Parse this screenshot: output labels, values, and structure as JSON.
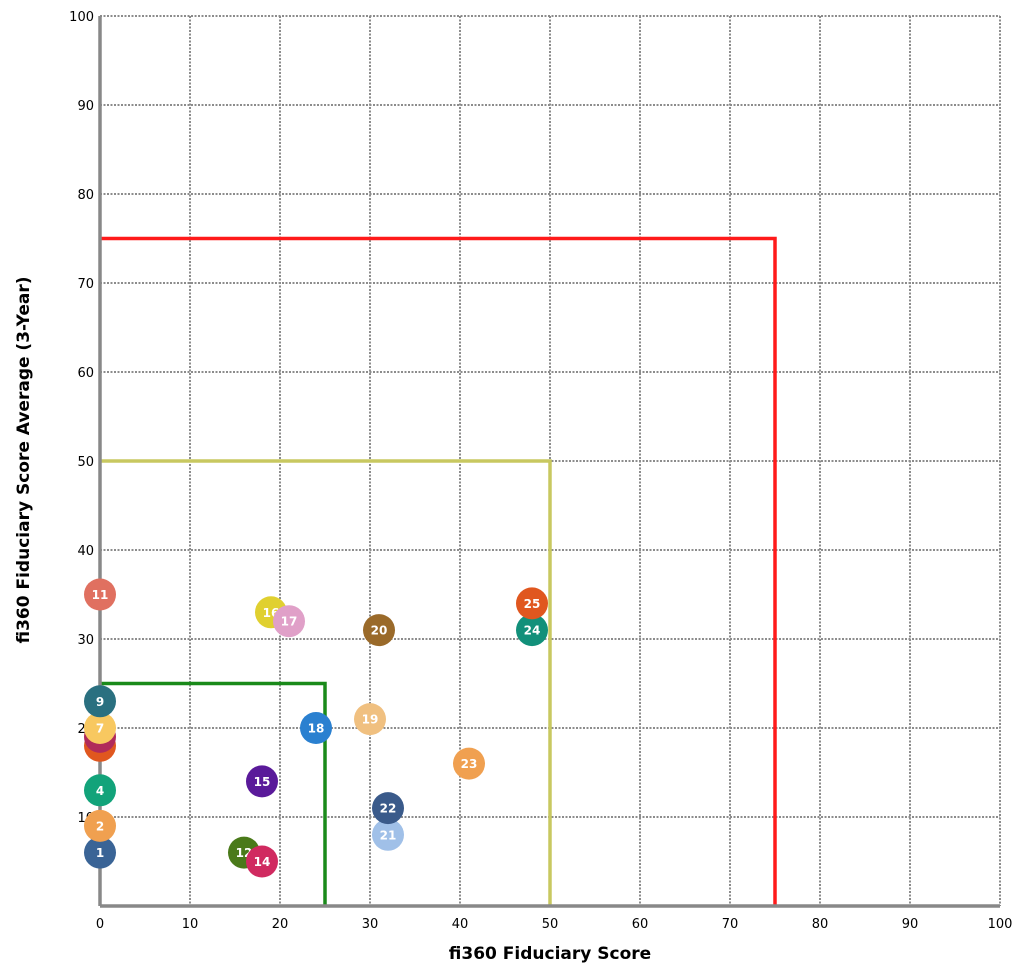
{
  "chart_data": {
    "type": "scatter",
    "xlabel": "fi360 Fiduciary Score",
    "ylabel": "fi360 Fiduciary Score Average (3-Year)",
    "xlim": [
      0,
      100
    ],
    "ylim": [
      0,
      100
    ],
    "x_ticks": [
      "0",
      "10",
      "20",
      "30",
      "40",
      "50",
      "60",
      "70",
      "80",
      "90",
      "100"
    ],
    "y_ticks": [
      "10",
      "20",
      "30",
      "40",
      "50",
      "60",
      "70",
      "80",
      "90",
      "100"
    ],
    "grid": true,
    "threshold_boxes": [
      {
        "limit": 75,
        "color": "#ff1a1a"
      },
      {
        "limit": 50,
        "color": "#c8c860"
      },
      {
        "limit": 25,
        "color": "#1a8a1a"
      }
    ],
    "points": [
      {
        "label": "1",
        "x": 0,
        "y": 6,
        "color": "#3a6496"
      },
      {
        "label": "2",
        "x": 0,
        "y": 9,
        "color": "#f0a050"
      },
      {
        "label": "4",
        "x": 0,
        "y": 13,
        "color": "#12a37a"
      },
      {
        "label": "5",
        "x": 0,
        "y": 18,
        "color": "#e0571f"
      },
      {
        "label": "6",
        "x": 0,
        "y": 19,
        "color": "#b02a5a"
      },
      {
        "label": "7",
        "x": 0,
        "y": 20,
        "color": "#f8c860"
      },
      {
        "label": "9",
        "x": 0,
        "y": 23,
        "color": "#2a7080"
      },
      {
        "label": "11",
        "x": 0,
        "y": 35,
        "color": "#e07060"
      },
      {
        "label": "12",
        "x": 16,
        "y": 6,
        "color": "#4a7a1a"
      },
      {
        "label": "14",
        "x": 18,
        "y": 5,
        "color": "#d02a60"
      },
      {
        "label": "15",
        "x": 18,
        "y": 14,
        "color": "#5a1a9a"
      },
      {
        "label": "16",
        "x": 19,
        "y": 33,
        "color": "#e0d030"
      },
      {
        "label": "17",
        "x": 21,
        "y": 32,
        "color": "#e0a0c8"
      },
      {
        "label": "18",
        "x": 24,
        "y": 20,
        "color": "#2a80d0"
      },
      {
        "label": "19",
        "x": 30,
        "y": 21,
        "color": "#f0c080"
      },
      {
        "label": "20",
        "x": 31,
        "y": 31,
        "color": "#9a6a2a"
      },
      {
        "label": "21",
        "x": 32,
        "y": 8,
        "color": "#a0c0e8"
      },
      {
        "label": "22",
        "x": 32,
        "y": 11,
        "color": "#3a5a8a"
      },
      {
        "label": "23",
        "x": 41,
        "y": 16,
        "color": "#f0a050"
      },
      {
        "label": "24",
        "x": 48,
        "y": 31,
        "color": "#12907a"
      },
      {
        "label": "25",
        "x": 48,
        "y": 34,
        "color": "#e0571f"
      }
    ]
  }
}
